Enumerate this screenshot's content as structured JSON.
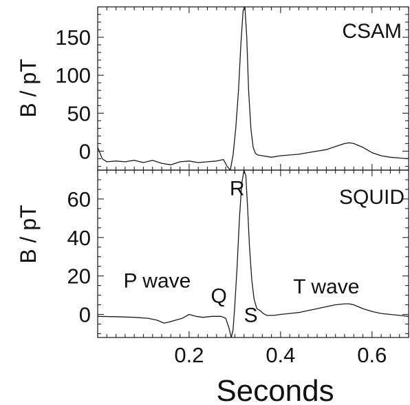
{
  "chart_data": [
    {
      "type": "line",
      "panel": "top",
      "title": "CSAM",
      "ylabel": "B / pT",
      "xlabel": "",
      "xlim": [
        0.0,
        0.68
      ],
      "ylim": [
        -25,
        190
      ],
      "yticks": [
        0,
        50,
        100,
        150
      ],
      "yticks_minor_step": 10,
      "xticks": [
        0.2,
        0.4,
        0.6
      ],
      "xticks_minor_step": 0.02,
      "series": [
        {
          "x": [
            0.0,
            0.01,
            0.02,
            0.04,
            0.06,
            0.08,
            0.1,
            0.12,
            0.14,
            0.16,
            0.18,
            0.2,
            0.22,
            0.24,
            0.26,
            0.275,
            0.283,
            0.29,
            0.296,
            0.302,
            0.308,
            0.313,
            0.318,
            0.322,
            0.326,
            0.33,
            0.335,
            0.34,
            0.345,
            0.35,
            0.36,
            0.38,
            0.4,
            0.42,
            0.44,
            0.46,
            0.48,
            0.5,
            0.52,
            0.54,
            0.55,
            0.56,
            0.58,
            0.6,
            0.62,
            0.64,
            0.66,
            0.68
          ],
          "y": [
            5,
            -10,
            -14,
            -13,
            -14,
            -12,
            -15,
            -12,
            -16,
            -18,
            -14,
            -13,
            -15,
            -14,
            -13,
            -11,
            -20,
            -28,
            -5,
            30,
            80,
            140,
            185,
            195,
            150,
            80,
            30,
            5,
            -3,
            -5,
            -6,
            -8,
            -6,
            -5,
            -4,
            -2,
            0,
            2,
            6,
            10,
            11,
            10,
            5,
            -2,
            -6,
            -8,
            -9,
            -10
          ]
        }
      ]
    },
    {
      "type": "line",
      "panel": "bottom",
      "title": "SQUID",
      "ylabel": "B / pT",
      "xlabel": "Seconds",
      "xlim": [
        0.0,
        0.68
      ],
      "ylim": [
        -12,
        75
      ],
      "yticks": [
        0,
        20,
        40,
        60
      ],
      "yticks_minor_step": 5,
      "xticks": [
        0.2,
        0.4,
        0.6
      ],
      "xticks_minor_step": 0.02,
      "xtick_labels": [
        "0.2",
        "0.4",
        "0.6"
      ],
      "series": [
        {
          "x": [
            0.0,
            0.04,
            0.08,
            0.11,
            0.13,
            0.145,
            0.155,
            0.17,
            0.185,
            0.2,
            0.215,
            0.23,
            0.25,
            0.27,
            0.28,
            0.287,
            0.292,
            0.296,
            0.3,
            0.305,
            0.31,
            0.315,
            0.32,
            0.324,
            0.328,
            0.332,
            0.337,
            0.342,
            0.348,
            0.355,
            0.362,
            0.37,
            0.385,
            0.4,
            0.42,
            0.44,
            0.46,
            0.48,
            0.5,
            0.52,
            0.54,
            0.55,
            0.56,
            0.58,
            0.6,
            0.62,
            0.64,
            0.66,
            0.68
          ],
          "y": [
            -1,
            -1.2,
            -1.5,
            -2,
            -3,
            -4.5,
            -4,
            -3,
            -2,
            0,
            -1,
            -1.5,
            -1,
            -1,
            -2,
            -7,
            -12,
            -8,
            5,
            25,
            50,
            68,
            78,
            72,
            55,
            35,
            18,
            8,
            3,
            2,
            0.5,
            -0.5,
            -0.5,
            0,
            0.5,
            1,
            2,
            3,
            4,
            5,
            5.5,
            5.5,
            5,
            3,
            1.5,
            0.5,
            0,
            -0.5,
            -1
          ]
        }
      ],
      "annotations": [
        {
          "text": "R",
          "x": 0.305,
          "y": 62
        },
        {
          "text": "P wave",
          "x": 0.13,
          "y": 14
        },
        {
          "text": "Q",
          "x": 0.265,
          "y": 6
        },
        {
          "text": "S",
          "x": 0.335,
          "y": -4
        },
        {
          "text": "T wave",
          "x": 0.5,
          "y": 11
        }
      ]
    }
  ]
}
